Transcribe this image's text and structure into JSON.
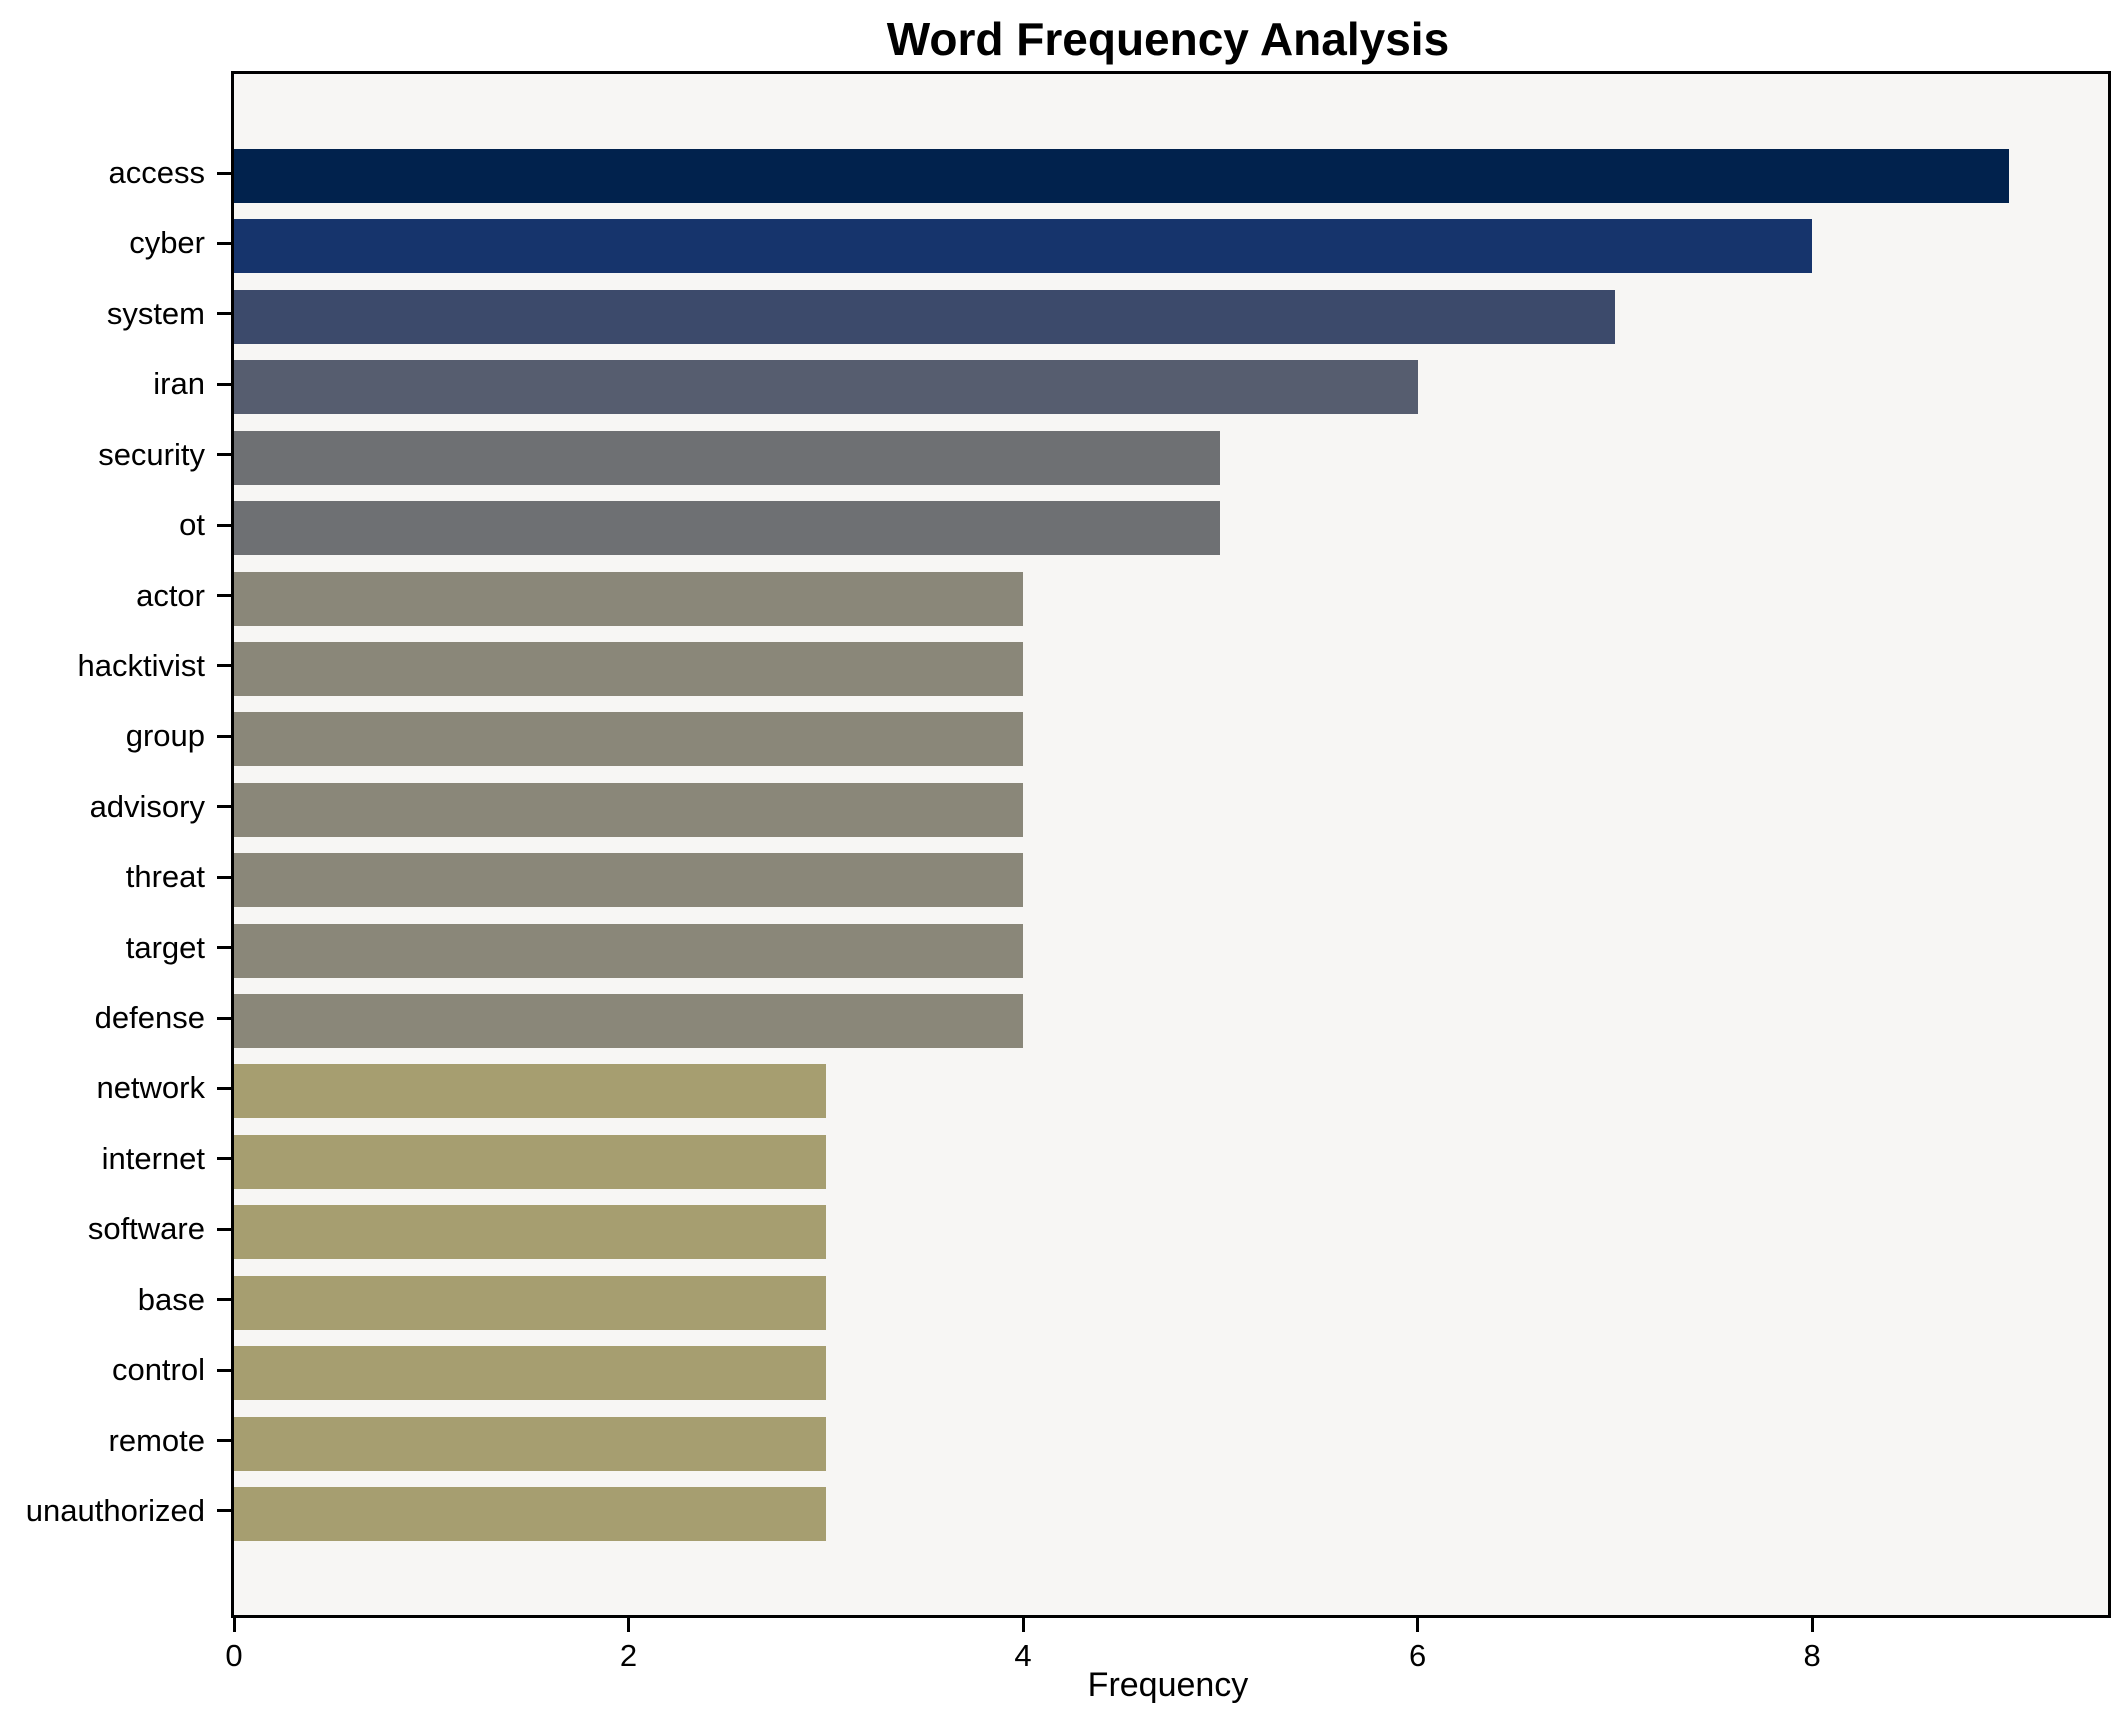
{
  "chart_data": {
    "type": "bar",
    "orientation": "horizontal",
    "title": "Word Frequency Analysis",
    "xlabel": "Frequency",
    "ylabel": "",
    "xlim": [
      0,
      9.5
    ],
    "xticks": [
      "0",
      "2",
      "4",
      "6",
      "8"
    ],
    "xtick_values": [
      0,
      2,
      4,
      6,
      8
    ],
    "grid": false,
    "legend": "none",
    "categories": [
      "access",
      "cyber",
      "system",
      "iran",
      "security",
      "ot",
      "actor",
      "hacktivist",
      "group",
      "advisory",
      "threat",
      "target",
      "defense",
      "network",
      "internet",
      "software",
      "base",
      "control",
      "remote",
      "unauthorized"
    ],
    "values": [
      9,
      8,
      7,
      6,
      5,
      5,
      4,
      4,
      4,
      4,
      4,
      4,
      4,
      3,
      3,
      3,
      3,
      3,
      3,
      3
    ],
    "bar_colors": [
      "#01224d",
      "#16346c",
      "#3c4a6b",
      "#565d6f",
      "#6e7073",
      "#6e7073",
      "#8a8779",
      "#8a8779",
      "#8a8779",
      "#8a8779",
      "#8a8779",
      "#8a8779",
      "#8a8779",
      "#a69e70",
      "#a69e70",
      "#a69e70",
      "#a69e70",
      "#a69e70",
      "#a69e70",
      "#a69e70"
    ],
    "colors": {
      "figure_background": "#ffffff",
      "axes_background": "#f7f6f4",
      "spine": "#000000",
      "text": "#000000"
    }
  }
}
